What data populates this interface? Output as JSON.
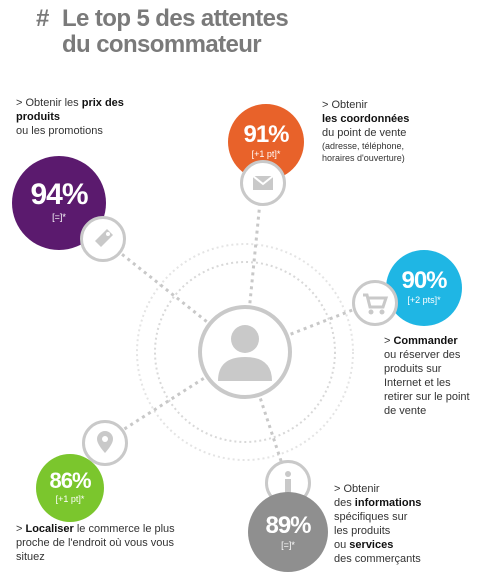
{
  "title": {
    "hash": "#",
    "line1": "Le top 5 des attentes",
    "line2": "du consommateur"
  },
  "items": [
    {
      "key": "prix",
      "pct": "94%",
      "delta": "[=]*",
      "color": "#5b1a6e",
      "icon": "price-tag-icon",
      "text": {
        "pre": "> Obtenir les ",
        "bold": "prix des produits",
        "post": " ou les promotions"
      }
    },
    {
      "key": "coordonnees",
      "pct": "91%",
      "delta": "[+1 pt]*",
      "color": "#e8622a",
      "icon": "envelope-icon",
      "text": {
        "pre": "> Obtenir",
        "bold": "les coordonnées",
        "post": "du point de vente",
        "note": "(adresse, téléphone, horaires d'ouverture)"
      }
    },
    {
      "key": "commander",
      "pct": "90%",
      "delta": "[+2 pts]*",
      "color": "#1fb6e4",
      "icon": "shopping-cart-icon",
      "text": {
        "pre": "> ",
        "bold": "Commander",
        "post": "ou réserver des produits sur Internet et les retirer sur le point de vente"
      }
    },
    {
      "key": "localiser",
      "pct": "86%",
      "delta": "[+1 pt]*",
      "color": "#7bc62d",
      "icon": "map-pin-icon",
      "text": {
        "pre": "> ",
        "bold": "Localiser",
        "post": " le commerce le plus proche de l'endroit où vous vous situez"
      }
    },
    {
      "key": "informations",
      "pct": "89%",
      "delta": "[=]*",
      "color": "#8f8f8f",
      "icon": "info-icon",
      "text": {
        "pre": "> Obtenir",
        "mid": "des ",
        "bold": "informations",
        "post1": "spécifiques sur les produits",
        "bold2": "ou ",
        "bold2b": "services",
        "post2": "des commerçants"
      }
    }
  ],
  "center": {
    "icon": "person-icon"
  }
}
